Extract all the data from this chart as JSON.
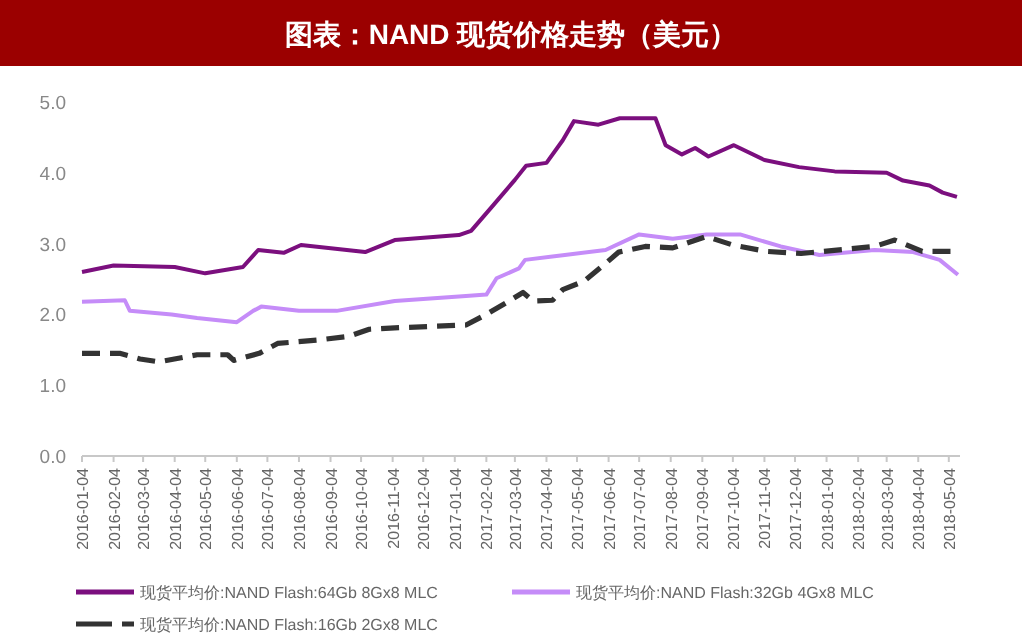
{
  "chart_data": {
    "type": "line",
    "title": "图表：NAND 现货价格走势（美元）",
    "ylim": [
      0,
      5
    ],
    "yticks": [
      {
        "value": 0,
        "label": "0.0"
      },
      {
        "value": 1,
        "label": "1.0"
      },
      {
        "value": 2,
        "label": "2.0"
      },
      {
        "value": 3,
        "label": "3.0"
      },
      {
        "value": 4,
        "label": "4.0"
      },
      {
        "value": 5,
        "label": "5.0"
      }
    ],
    "xlim": [
      "2016-01-04",
      "2018-05-15"
    ],
    "xticks": [
      "2016-01-04",
      "2016-02-04",
      "2016-03-04",
      "2016-04-04",
      "2016-05-04",
      "2016-06-04",
      "2016-07-04",
      "2016-08-04",
      "2016-09-04",
      "2016-10-04",
      "2016-11-04",
      "2016-12-04",
      "2017-01-04",
      "2017-02-04",
      "2017-03-04",
      "2017-04-04",
      "2017-05-04",
      "2017-06-04",
      "2017-07-04",
      "2017-08-04",
      "2017-09-04",
      "2017-10-04",
      "2017-11-04",
      "2017-12-04",
      "2018-01-04",
      "2018-02-04",
      "2018-03-04",
      "2018-04-04",
      "2018-05-04"
    ],
    "grid": false,
    "legend": "bottom",
    "series": [
      {
        "name": "现货平均价:NAND Flash:64Gb 8Gx8 MLC",
        "color": "#7b0f7e",
        "line_style": "solid",
        "x": [
          "2016-01-04",
          "2016-02-04",
          "2016-04-04",
          "2016-05-04",
          "2016-06-10",
          "2016-06-25",
          "2016-07-20",
          "2016-08-06",
          "2016-10-08",
          "2016-11-06",
          "2017-01-08",
          "2017-01-20",
          "2017-02-10",
          "2017-03-04",
          "2017-03-15",
          "2017-04-04",
          "2017-04-20",
          "2017-05-01",
          "2017-05-25",
          "2017-06-15",
          "2017-07-20",
          "2017-07-30",
          "2017-08-15",
          "2017-08-28",
          "2017-09-10",
          "2017-10-05",
          "2017-11-04",
          "2017-12-08",
          "2018-01-12",
          "2018-03-04",
          "2018-03-20",
          "2018-04-15",
          "2018-04-28",
          "2018-05-12"
        ],
        "values": [
          2.6,
          2.69,
          2.67,
          2.58,
          2.67,
          2.91,
          2.87,
          2.98,
          2.88,
          3.05,
          3.12,
          3.18,
          3.53,
          3.9,
          4.1,
          4.14,
          4.46,
          4.73,
          4.68,
          4.77,
          4.77,
          4.39,
          4.26,
          4.35,
          4.23,
          4.39,
          4.18,
          4.08,
          4.02,
          4.0,
          3.89,
          3.82,
          3.72,
          3.66
        ]
      },
      {
        "name": "现货平均价:NAND Flash:32Gb 4Gx8 MLC",
        "color": "#c58cf8",
        "line_style": "solid",
        "x": [
          "2016-01-04",
          "2016-02-15",
          "2016-02-20",
          "2016-04-01",
          "2016-04-26",
          "2016-06-04",
          "2016-06-20",
          "2016-06-28",
          "2016-08-04",
          "2016-09-10",
          "2016-11-06",
          "2017-01-15",
          "2017-02-04",
          "2017-02-14",
          "2017-03-08",
          "2017-03-14",
          "2017-04-22",
          "2017-06-01",
          "2017-07-04",
          "2017-08-06",
          "2017-09-08",
          "2017-10-11",
          "2017-11-20",
          "2017-12-28",
          "2018-02-20",
          "2018-03-30",
          "2018-04-25",
          "2018-05-13"
        ],
        "values": [
          2.18,
          2.2,
          2.05,
          2.0,
          1.95,
          1.89,
          2.05,
          2.11,
          2.05,
          2.05,
          2.19,
          2.26,
          2.28,
          2.51,
          2.65,
          2.77,
          2.84,
          2.91,
          3.13,
          3.07,
          3.13,
          3.13,
          2.96,
          2.84,
          2.91,
          2.88,
          2.77,
          2.56
        ]
      },
      {
        "name": "现货平均价:NAND Flash:16Gb 2Gx8 MLC",
        "color": "#333333",
        "line_style": "dashed",
        "x": [
          "2016-01-04",
          "2016-02-10",
          "2016-03-01",
          "2016-03-20",
          "2016-04-26",
          "2016-05-26",
          "2016-06-01",
          "2016-06-26",
          "2016-07-14",
          "2016-08-24",
          "2016-09-22",
          "2016-10-12",
          "2016-11-06",
          "2017-01-15",
          "2017-02-04",
          "2017-02-23",
          "2017-03-12",
          "2017-03-22",
          "2017-04-10",
          "2017-04-20",
          "2017-05-11",
          "2017-06-01",
          "2017-06-14",
          "2017-07-10",
          "2017-08-06",
          "2017-09-08",
          "2017-10-04",
          "2017-11-06",
          "2017-12-10",
          "2018-02-20",
          "2018-03-12",
          "2018-04-08",
          "2018-05-13"
        ],
        "values": [
          1.45,
          1.45,
          1.37,
          1.33,
          1.43,
          1.43,
          1.35,
          1.45,
          1.59,
          1.64,
          1.69,
          1.79,
          1.81,
          1.85,
          2.0,
          2.16,
          2.31,
          2.19,
          2.2,
          2.35,
          2.47,
          2.72,
          2.88,
          2.96,
          2.94,
          3.1,
          2.98,
          2.89,
          2.86,
          2.96,
          3.05,
          2.89,
          2.89
        ]
      }
    ]
  }
}
